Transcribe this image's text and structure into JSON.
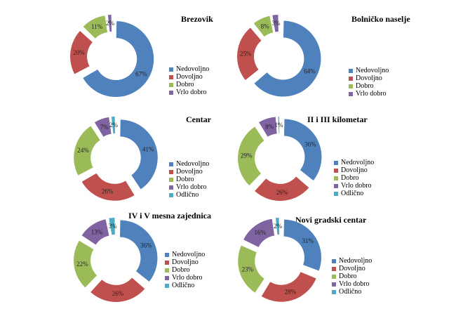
{
  "colors": {
    "Nedovoljno": "#4f81bd",
    "Dovoljno": "#c0504d",
    "Dobro": "#9bbb59",
    "Vrlo dobro": "#8064a2",
    "Odlično": "#4bacc6"
  },
  "chart_data": [
    {
      "type": "pie",
      "title": "Brezovik",
      "categories": [
        "Nedovoljno",
        "Dovoljno",
        "Dobro",
        "Vrlo dobro"
      ],
      "values": [
        67,
        20,
        11,
        2
      ],
      "labels": [
        "67%",
        "20%",
        "11%",
        "2%"
      ]
    },
    {
      "type": "pie",
      "title": "Bolničko naselje",
      "categories": [
        "Nedovoljno",
        "Dovoljno",
        "Dobro",
        "Vrlo dobro"
      ],
      "values": [
        64,
        25,
        8,
        3
      ],
      "labels": [
        "64%",
        "25%",
        "8%",
        "3%"
      ]
    },
    {
      "type": "pie",
      "title": "Centar",
      "categories": [
        "Nedovoljno",
        "Dovoljno",
        "Dobro",
        "Vrlo dobro",
        "Odlično"
      ],
      "values": [
        41,
        26,
        24,
        7,
        2
      ],
      "labels": [
        "41%",
        "26%",
        "24%",
        "7%",
        "2%"
      ]
    },
    {
      "type": "pie",
      "title": "II i III kilometar",
      "categories": [
        "Nedovoljno",
        "Dovoljno",
        "Dobro",
        "Vrlo dobro",
        "Odlično"
      ],
      "values": [
        36,
        26,
        29,
        8,
        1
      ],
      "labels": [
        "36%",
        "26%",
        "29%",
        "8%",
        "1%"
      ]
    },
    {
      "type": "pie",
      "title": "IV i V mesna zajednica",
      "categories": [
        "Nedovoljno",
        "Dovoljno",
        "Dobro",
        "Vrlo dobro",
        "Odlično"
      ],
      "values": [
        36,
        26,
        22,
        13,
        3
      ],
      "labels": [
        "36%",
        "26%",
        "22%",
        "13%",
        "3%"
      ]
    },
    {
      "type": "pie",
      "title": "Novi gradski centar",
      "categories": [
        "Nedovoljno",
        "Dovoljno",
        "Dobro",
        "Vrlo dobro",
        "Odlično"
      ],
      "values": [
        31,
        28,
        23,
        16,
        2
      ],
      "labels": [
        "31%",
        "28%",
        "23%",
        "16%",
        "2%"
      ]
    }
  ]
}
